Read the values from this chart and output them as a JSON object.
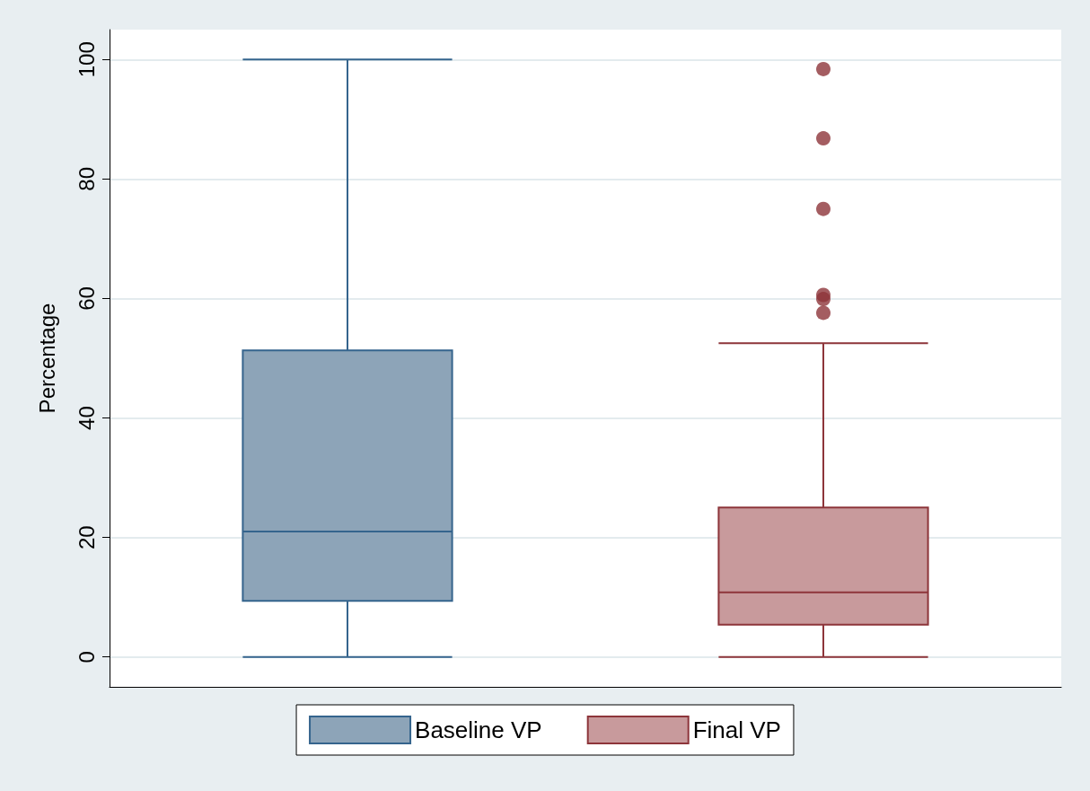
{
  "chart_data": {
    "type": "box",
    "ylabel": "Percentage",
    "categories": [
      null,
      null
    ],
    "ylim": [
      -5,
      105
    ],
    "yticks": [
      0,
      20,
      40,
      60,
      80,
      100
    ],
    "grid": "y",
    "legend": "bottom",
    "series": [
      {
        "name": "Baseline VP",
        "color": "#8da4b8",
        "boxes": [
          {
            "low": 0,
            "q1": 9.4,
            "median": 21,
            "q3": 51.3,
            "high": 100
          },
          null
        ]
      },
      {
        "name": "Final VP",
        "color": "#c89a9c",
        "boxes": [
          null,
          {
            "low": 0,
            "q1": 5.4,
            "median": 10.8,
            "q3": 25,
            "high": 52.5,
            "outliers": [
              98.4,
              86.8,
              75,
              60.6,
              59.9,
              57.6
            ]
          }
        ]
      }
    ]
  }
}
